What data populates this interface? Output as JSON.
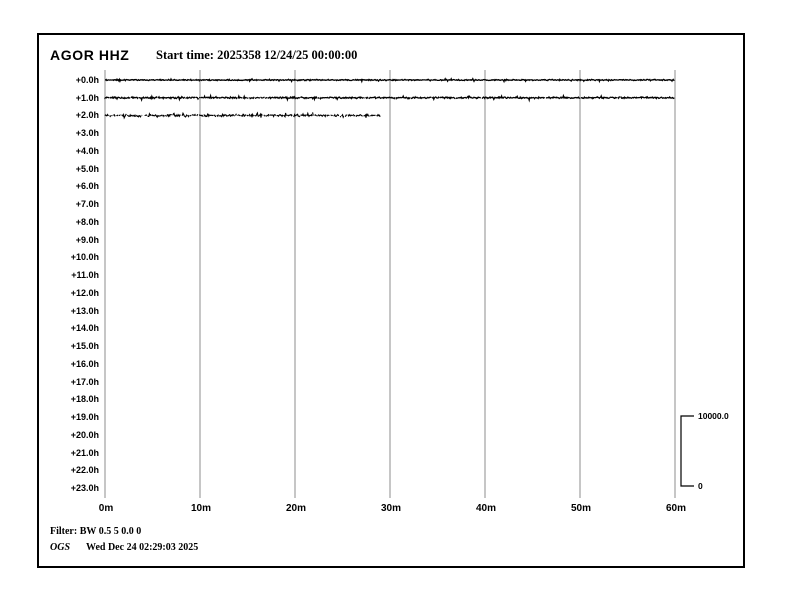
{
  "header": {
    "station": "AGOR HHZ",
    "start_time": "Start time: 2025358 12/24/25 00:00:00"
  },
  "chart_data": {
    "type": "line",
    "subtype": "helicorder-drum-plot",
    "title": "AGOR HHZ",
    "start_time_label": "Start time: 2025358 12/24/25 00:00:00",
    "xlabel_units": "minutes",
    "ylabel_units": "hours offset",
    "x_tick_labels": [
      "0m",
      "10m",
      "20m",
      "30m",
      "40m",
      "50m",
      "60m"
    ],
    "x_tick_minutes": [
      0,
      10,
      20,
      30,
      40,
      50,
      60
    ],
    "x_range_minutes": [
      0,
      60
    ],
    "row_labels": [
      "+0.0h",
      "+1.0h",
      "+2.0h",
      "+3.0h",
      "+4.0h",
      "+5.0h",
      "+6.0h",
      "+7.0h",
      "+8.0h",
      "+9.0h",
      "+10.0h",
      "+11.0h",
      "+12.0h",
      "+13.0h",
      "+14.0h",
      "+15.0h",
      "+16.0h",
      "+17.0h",
      "+18.0h",
      "+19.0h",
      "+20.0h",
      "+21.0h",
      "+22.0h",
      "+23.0h"
    ],
    "grid": "vertical-only",
    "legend": "none",
    "series": [
      {
        "name": "+0.0h trace",
        "row": 0,
        "start_minute": 0,
        "end_minute": 60,
        "mean_value": 0,
        "character": "flat with minor noise",
        "style": {
          "amp": 0.7,
          "spike_p": 0.05,
          "spike_amp": 1.6,
          "gap_p": 0.0,
          "width": 1.3
        }
      },
      {
        "name": "+1.0h trace",
        "row": 1,
        "start_minute": 0,
        "end_minute": 60,
        "mean_value": 0,
        "character": "flat with minor noise",
        "style": {
          "amp": 0.95,
          "spike_p": 0.07,
          "spike_amp": 1.8,
          "gap_p": 0.04,
          "width": 1.25
        }
      },
      {
        "name": "+2.0h trace",
        "row": 2,
        "start_minute": 0,
        "end_minute": 29,
        "mean_value": 0,
        "character": "flat, speckled, recording stops ~29m",
        "style": {
          "amp": 1.25,
          "spike_p": 0.09,
          "spike_amp": 2.2,
          "gap_p": 0.2,
          "width": 1.1
        }
      }
    ],
    "scale_bar": {
      "max_label": "10000.0",
      "min_label": "0"
    }
  },
  "footer": {
    "filter": "Filter: BW 0.5 5 0.0 0",
    "agency": "OGS",
    "timestamp": "Wed Dec 24 02:29:03 2025"
  },
  "colors": {
    "background": "#ffffff",
    "frame": "#000000",
    "trace": "#000000",
    "gridline": "#8c8c8c",
    "text": "#000000"
  }
}
